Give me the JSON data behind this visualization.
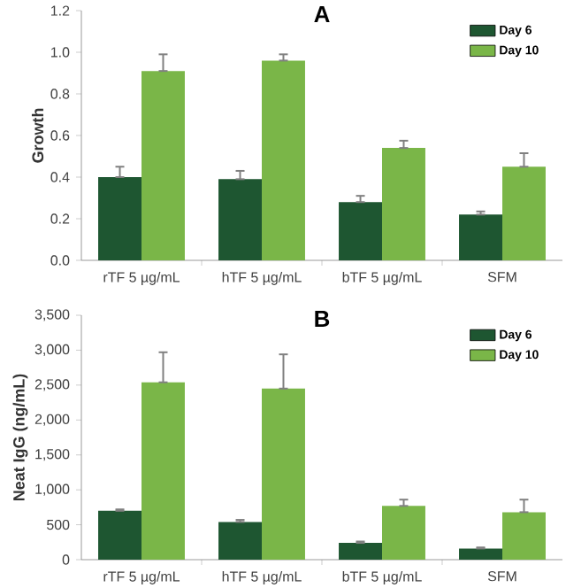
{
  "chart_data": [
    {
      "type": "bar",
      "title": "A",
      "ylabel": "Growth",
      "categories": [
        "rTF 5 µg/mL",
        "hTF 5 µg/mL",
        "bTF 5 µg/mL",
        "SFM"
      ],
      "ylim": [
        0,
        1.2
      ],
      "yticks": [
        {
          "value": 0,
          "label": "0.0"
        },
        {
          "value": 0.2,
          "label": "0.2"
        },
        {
          "value": 0.4,
          "label": "0.4"
        },
        {
          "value": 0.6,
          "label": "0.6"
        },
        {
          "value": 0.8,
          "label": "0.8"
        },
        {
          "value": 1,
          "label": "1.0"
        },
        {
          "value": 1.2,
          "label": "1.2"
        }
      ],
      "legend": "top right",
      "grid": false,
      "series": [
        {
          "name": "Day 6",
          "color": "#1e5631",
          "values": [
            0.4,
            0.39,
            0.28,
            0.22
          ],
          "errors": [
            [
              0.4,
              0.45
            ],
            [
              0.39,
              0.43
            ],
            [
              0.28,
              0.31
            ],
            [
              0.22,
              0.235
            ]
          ]
        },
        {
          "name": "Day 10",
          "color": "#7ab648",
          "values": [
            0.91,
            0.96,
            0.54,
            0.45
          ],
          "errors": [
            [
              0.91,
              0.99
            ],
            [
              0.96,
              0.99
            ],
            [
              0.54,
              0.575
            ],
            [
              0.45,
              0.515
            ]
          ]
        }
      ]
    },
    {
      "type": "bar",
      "title": "B",
      "ylabel": "Neat IgG (ng/mL)",
      "categories": [
        "rTF 5 µg/mL",
        "hTF 5 µg/mL",
        "bTF 5 µg/mL",
        "SFM"
      ],
      "ylim": [
        0,
        3500
      ],
      "yticks": [
        0,
        500,
        {
          "value": 1000,
          "label": "1,000"
        },
        {
          "value": 1500,
          "label": "1,500"
        },
        {
          "value": 2000,
          "label": "2,000"
        },
        {
          "value": 2500,
          "label": "2,500"
        },
        {
          "value": 3000,
          "label": "3,000"
        },
        {
          "value": 3500,
          "label": "3,500"
        }
      ],
      "legend": "top right",
      "grid": false,
      "series": [
        {
          "name": "Day 6",
          "color": "#1e5631",
          "values": [
            700,
            540,
            240,
            160
          ],
          "errors": [
            [
              700,
              720
            ],
            [
              540,
              570
            ],
            [
              240,
              260
            ],
            [
              160,
              175
            ]
          ]
        },
        {
          "name": "Day 10",
          "color": "#7ab648",
          "values": [
            2540,
            2450,
            770,
            680
          ],
          "errors": [
            [
              2540,
              2970
            ],
            [
              2450,
              2940
            ],
            [
              770,
              860
            ],
            [
              680,
              860
            ]
          ]
        }
      ]
    }
  ]
}
